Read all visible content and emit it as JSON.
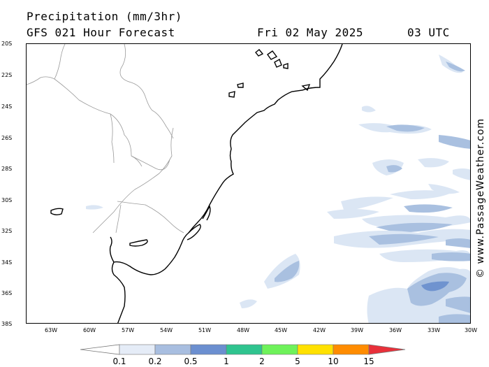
{
  "header": {
    "title": "Precipitation (mm/3hr)",
    "model": "GFS 021 Hour Forecast",
    "date": "Fri 02 May 2025",
    "time": "03 UTC"
  },
  "credit": "© www.PassageWeather.com",
  "map": {
    "lat_labels": [
      "20S",
      "22S",
      "24S",
      "26S",
      "28S",
      "30S",
      "32S",
      "34S",
      "36S",
      "38S"
    ],
    "lon_labels": [
      "63W",
      "60W",
      "57W",
      "54W",
      "51W",
      "48W",
      "45W",
      "42W",
      "39W",
      "36W",
      "33W",
      "30W"
    ],
    "colors": {
      "coastline": "#000000",
      "borders": "#9a9a9a",
      "precip_light": "#dbe6f4",
      "precip_medium": "#a9c0e0",
      "precip_heavy": "#6f93cf"
    }
  },
  "legend": {
    "labels": [
      "0.1",
      "0.2",
      "0.5",
      "1",
      "2",
      "5",
      "10",
      "15"
    ],
    "colors": [
      "#ffffff",
      "#e5ecf7",
      "#a8bee0",
      "#6b8fd0",
      "#2fc48f",
      "#6ef25a",
      "#ffe100",
      "#ff8c00",
      "#e8303a"
    ]
  }
}
